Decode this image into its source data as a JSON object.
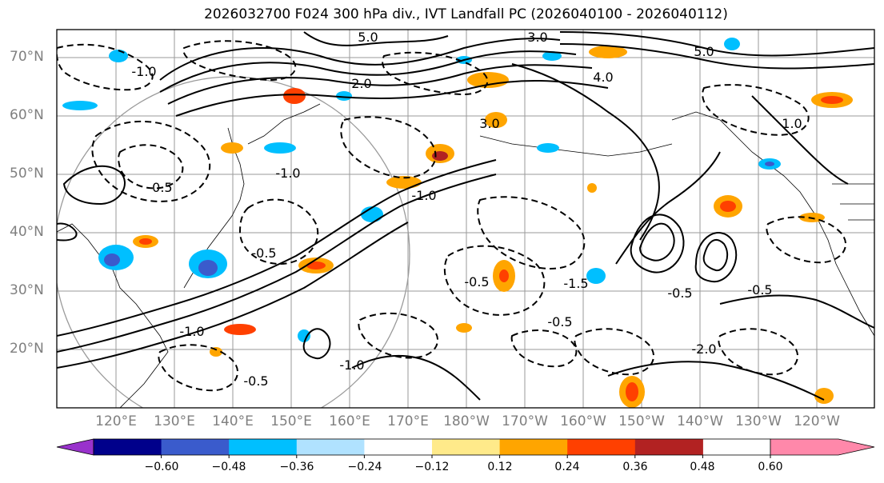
{
  "title": "2026032700 F024 300 hPa div., IVT Landfall PC (2026040100 - 2026040112)",
  "map": {
    "lat_labels": [
      "70°N",
      "60°N",
      "50°N",
      "40°N",
      "30°N",
      "20°N"
    ],
    "lon_labels": [
      "120°E",
      "130°E",
      "140°E",
      "150°E",
      "160°E",
      "170°E",
      "180°W",
      "170°W",
      "160°W",
      "150°W",
      "140°W",
      "130°W",
      "120°W"
    ],
    "contour_labels": [
      "5.0",
      "3.0",
      "5.0",
      "-1.0",
      "3.0",
      "4.0",
      "-0.5",
      "-1.0",
      "2.0",
      "-1.0",
      "-0.5",
      "-0.5",
      "-0.5",
      "-0.5",
      "-1.0",
      "-1.0",
      "1.0",
      "-0.5",
      "-0.5",
      "-1.5",
      "-2.0"
    ]
  },
  "colorbar": {
    "tick_labels": [
      "−0.60",
      "−0.48",
      "−0.36",
      "−0.24",
      "−0.12",
      "0.12",
      "0.24",
      "0.36",
      "0.48",
      "0.60"
    ],
    "colors": [
      "#9932cc",
      "#00008b",
      "#3a5bcc",
      "#00bfff",
      "#b0e2ff",
      "#ffffff",
      "#ffea8a",
      "#ffa500",
      "#ff4000",
      "#b22222",
      "#ff88aa"
    ]
  }
}
